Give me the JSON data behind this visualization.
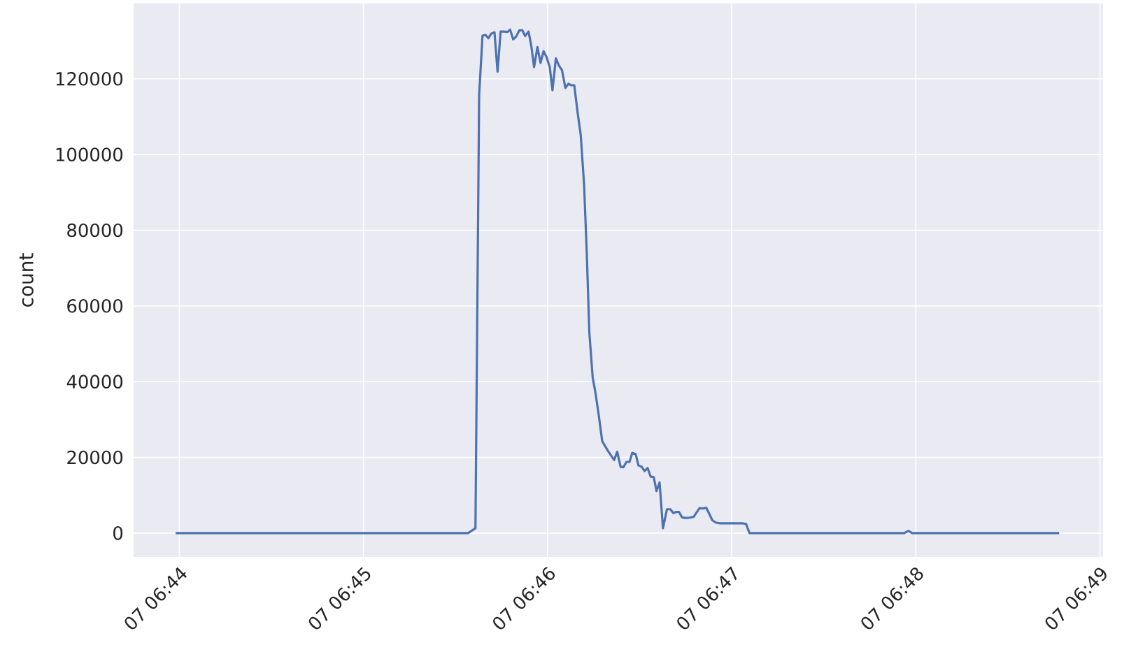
{
  "chart_data": {
    "type": "line",
    "ylabel": "count",
    "color": "#4c72b0",
    "grid": true,
    "marker": "none",
    "line_style": "solid",
    "xlim": [
      "2000-01-07T06:43:45.1",
      "2000-01-07T06:49:01.0"
    ],
    "ylim": [
      -6300,
      139900
    ],
    "xticks": [
      {
        "value": "2000-01-07T06:44",
        "label": "07 06:44"
      },
      {
        "value": "2000-01-07T06:45",
        "label": "07 06:45"
      },
      {
        "value": "2000-01-07T06:46",
        "label": "07 06:46"
      },
      {
        "value": "2000-01-07T06:47",
        "label": "07 06:47"
      },
      {
        "value": "2000-01-07T06:48",
        "label": "07 06:48"
      },
      {
        "value": "2000-01-07T06:49",
        "label": "07 06:49"
      }
    ],
    "yticks": [
      0,
      20000,
      40000,
      60000,
      80000,
      100000,
      120000
    ],
    "x": [
      "2000-01-07T06:43:58.8",
      "2000-01-07T06:45:34.1",
      "2000-01-07T06:45:36.5",
      "2000-01-07T06:45:37.7",
      "2000-01-07T06:45:38.8",
      "2000-01-07T06:45:39.8",
      "2000-01-07T06:45:40.7",
      "2000-01-07T06:45:41.6",
      "2000-01-07T06:45:42.7",
      "2000-01-07T06:45:43.7",
      "2000-01-07T06:45:44.7",
      "2000-01-07T06:45:45.7",
      "2000-01-07T06:45:47.0",
      "2000-01-07T06:45:47.8",
      "2000-01-07T06:45:48.8",
      "2000-01-07T06:45:49.7",
      "2000-01-07T06:45:50.8",
      "2000-01-07T06:45:51.8",
      "2000-01-07T06:45:52.7",
      "2000-01-07T06:45:53.8",
      "2000-01-07T06:45:54.7",
      "2000-01-07T06:45:55.6",
      "2000-01-07T06:45:56.7",
      "2000-01-07T06:45:57.7",
      "2000-01-07T06:45:58.7",
      "2000-01-07T06:45:59.7",
      "2000-01-07T06:46:00.7",
      "2000-01-07T06:46:01.6",
      "2000-01-07T06:46:02.7",
      "2000-01-07T06:46:03.7",
      "2000-01-07T06:46:04.7",
      "2000-01-07T06:46:05.8",
      "2000-01-07T06:46:06.8",
      "2000-01-07T06:46:07.7",
      "2000-01-07T06:46:08.7",
      "2000-01-07T06:46:09.8",
      "2000-01-07T06:46:10.8",
      "2000-01-07T06:46:11.9",
      "2000-01-07T06:46:12.8",
      "2000-01-07T06:46:13.6",
      "2000-01-07T06:46:14.7",
      "2000-01-07T06:46:15.6",
      "2000-01-07T06:46:16.7",
      "2000-01-07T06:46:17.8",
      "2000-01-07T06:46:19.7",
      "2000-01-07T06:46:21.7",
      "2000-01-07T06:46:22.7",
      "2000-01-07T06:46:23.8",
      "2000-01-07T06:46:24.7",
      "2000-01-07T06:46:25.7",
      "2000-01-07T06:46:26.7",
      "2000-01-07T06:46:27.6",
      "2000-01-07T06:46:28.7",
      "2000-01-07T06:46:29.6",
      "2000-01-07T06:46:30.7",
      "2000-01-07T06:46:31.6",
      "2000-01-07T06:46:32.6",
      "2000-01-07T06:46:33.6",
      "2000-01-07T06:46:34.6",
      "2000-01-07T06:46:35.5",
      "2000-01-07T06:46:36.5",
      "2000-01-07T06:46:37.6",
      "2000-01-07T06:46:38.9",
      "2000-01-07T06:46:40.0",
      "2000-01-07T06:46:41.0",
      "2000-01-07T06:46:41.9",
      "2000-01-07T06:46:42.8",
      "2000-01-07T06:46:43.8",
      "2000-01-07T06:46:44.8",
      "2000-01-07T06:46:45.7",
      "2000-01-07T06:46:47.6",
      "2000-01-07T06:46:49.5",
      "2000-01-07T06:46:50.6",
      "2000-01-07T06:46:51.7",
      "2000-01-07T06:46:53.7",
      "2000-01-07T06:46:54.8",
      "2000-01-07T06:46:56.0",
      "2000-01-07T06:46:57.1",
      "2000-01-07T06:47:00.2",
      "2000-01-07T06:47:03.5",
      "2000-01-07T06:47:04.7",
      "2000-01-07T06:47:05.8",
      "2000-01-07T06:47:56.2",
      "2000-01-07T06:47:57.6",
      "2000-01-07T06:47:58.8",
      "2000-01-07T06:48:46.7"
    ],
    "values": [
      0,
      0,
      1300,
      115800,
      131400,
      131600,
      130700,
      131900,
      132300,
      121900,
      132500,
      132500,
      132400,
      133000,
      130400,
      131100,
      132800,
      132800,
      131300,
      132500,
      128700,
      123100,
      128400,
      124200,
      127300,
      125700,
      123100,
      117000,
      125400,
      123500,
      122300,
      117600,
      118700,
      118300,
      118300,
      111000,
      105200,
      92000,
      73400,
      53100,
      41100,
      37100,
      31000,
      24300,
      21700,
      19300,
      21500,
      17500,
      17400,
      18800,
      18800,
      21200,
      20900,
      17900,
      17500,
      16400,
      17200,
      14900,
      14800,
      11100,
      13400,
      1300,
      6300,
      6300,
      5300,
      5600,
      5600,
      4200,
      4000,
      4000,
      4300,
      6600,
      6500,
      6700,
      3400,
      2800,
      2600,
      2600,
      2600,
      2600,
      2400,
      0,
      0,
      600,
      0,
      0
    ]
  }
}
